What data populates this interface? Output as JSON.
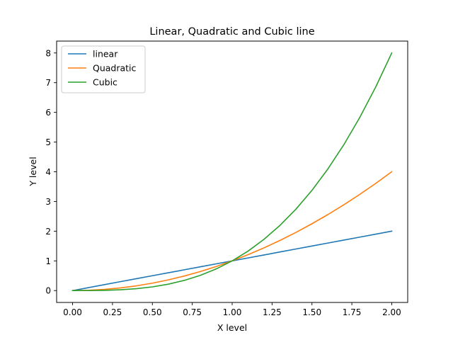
{
  "chart_data": {
    "type": "line",
    "title": "Linear, Quadratic and Cubic line",
    "xlabel": "X level",
    "ylabel": "Y level",
    "xlim": [
      -0.1,
      2.1
    ],
    "ylim": [
      -0.4,
      8.4
    ],
    "xticks": [
      0.0,
      0.25,
      0.5,
      0.75,
      1.0,
      1.25,
      1.5,
      1.75,
      2.0
    ],
    "xtick_labels": [
      "0.00",
      "0.25",
      "0.50",
      "0.75",
      "1.00",
      "1.25",
      "1.50",
      "1.75",
      "2.00"
    ],
    "yticks": [
      0,
      1,
      2,
      3,
      4,
      5,
      6,
      7,
      8
    ],
    "ytick_labels": [
      "0",
      "1",
      "2",
      "3",
      "4",
      "5",
      "6",
      "7",
      "8"
    ],
    "grid": false,
    "legend": "top-left",
    "x": [
      0.0,
      0.1,
      0.2,
      0.3,
      0.4,
      0.5,
      0.6,
      0.7,
      0.8,
      0.9,
      1.0,
      1.1,
      1.2,
      1.3,
      1.4,
      1.5,
      1.6,
      1.7,
      1.8,
      1.9,
      2.0
    ],
    "series": [
      {
        "name": "linear",
        "color": "#1f77b4",
        "values": [
          0.0,
          0.1,
          0.2,
          0.3,
          0.4,
          0.5,
          0.6,
          0.7,
          0.8,
          0.9,
          1.0,
          1.1,
          1.2,
          1.3,
          1.4,
          1.5,
          1.6,
          1.7,
          1.8,
          1.9,
          2.0
        ]
      },
      {
        "name": "Quadratic",
        "color": "#ff7f0e",
        "values": [
          0.0,
          0.01,
          0.04,
          0.09,
          0.16,
          0.25,
          0.36,
          0.49,
          0.64,
          0.81,
          1.0,
          1.21,
          1.44,
          1.69,
          1.96,
          2.25,
          2.56,
          2.89,
          3.24,
          3.61,
          4.0
        ]
      },
      {
        "name": "Cubic",
        "color": "#2ca02c",
        "values": [
          0.0,
          0.001,
          0.008,
          0.027,
          0.064,
          0.125,
          0.216,
          0.343,
          0.512,
          0.729,
          1.0,
          1.331,
          1.728,
          2.197,
          2.744,
          3.375,
          4.096,
          4.913,
          5.832,
          6.859,
          8.0
        ]
      }
    ]
  }
}
